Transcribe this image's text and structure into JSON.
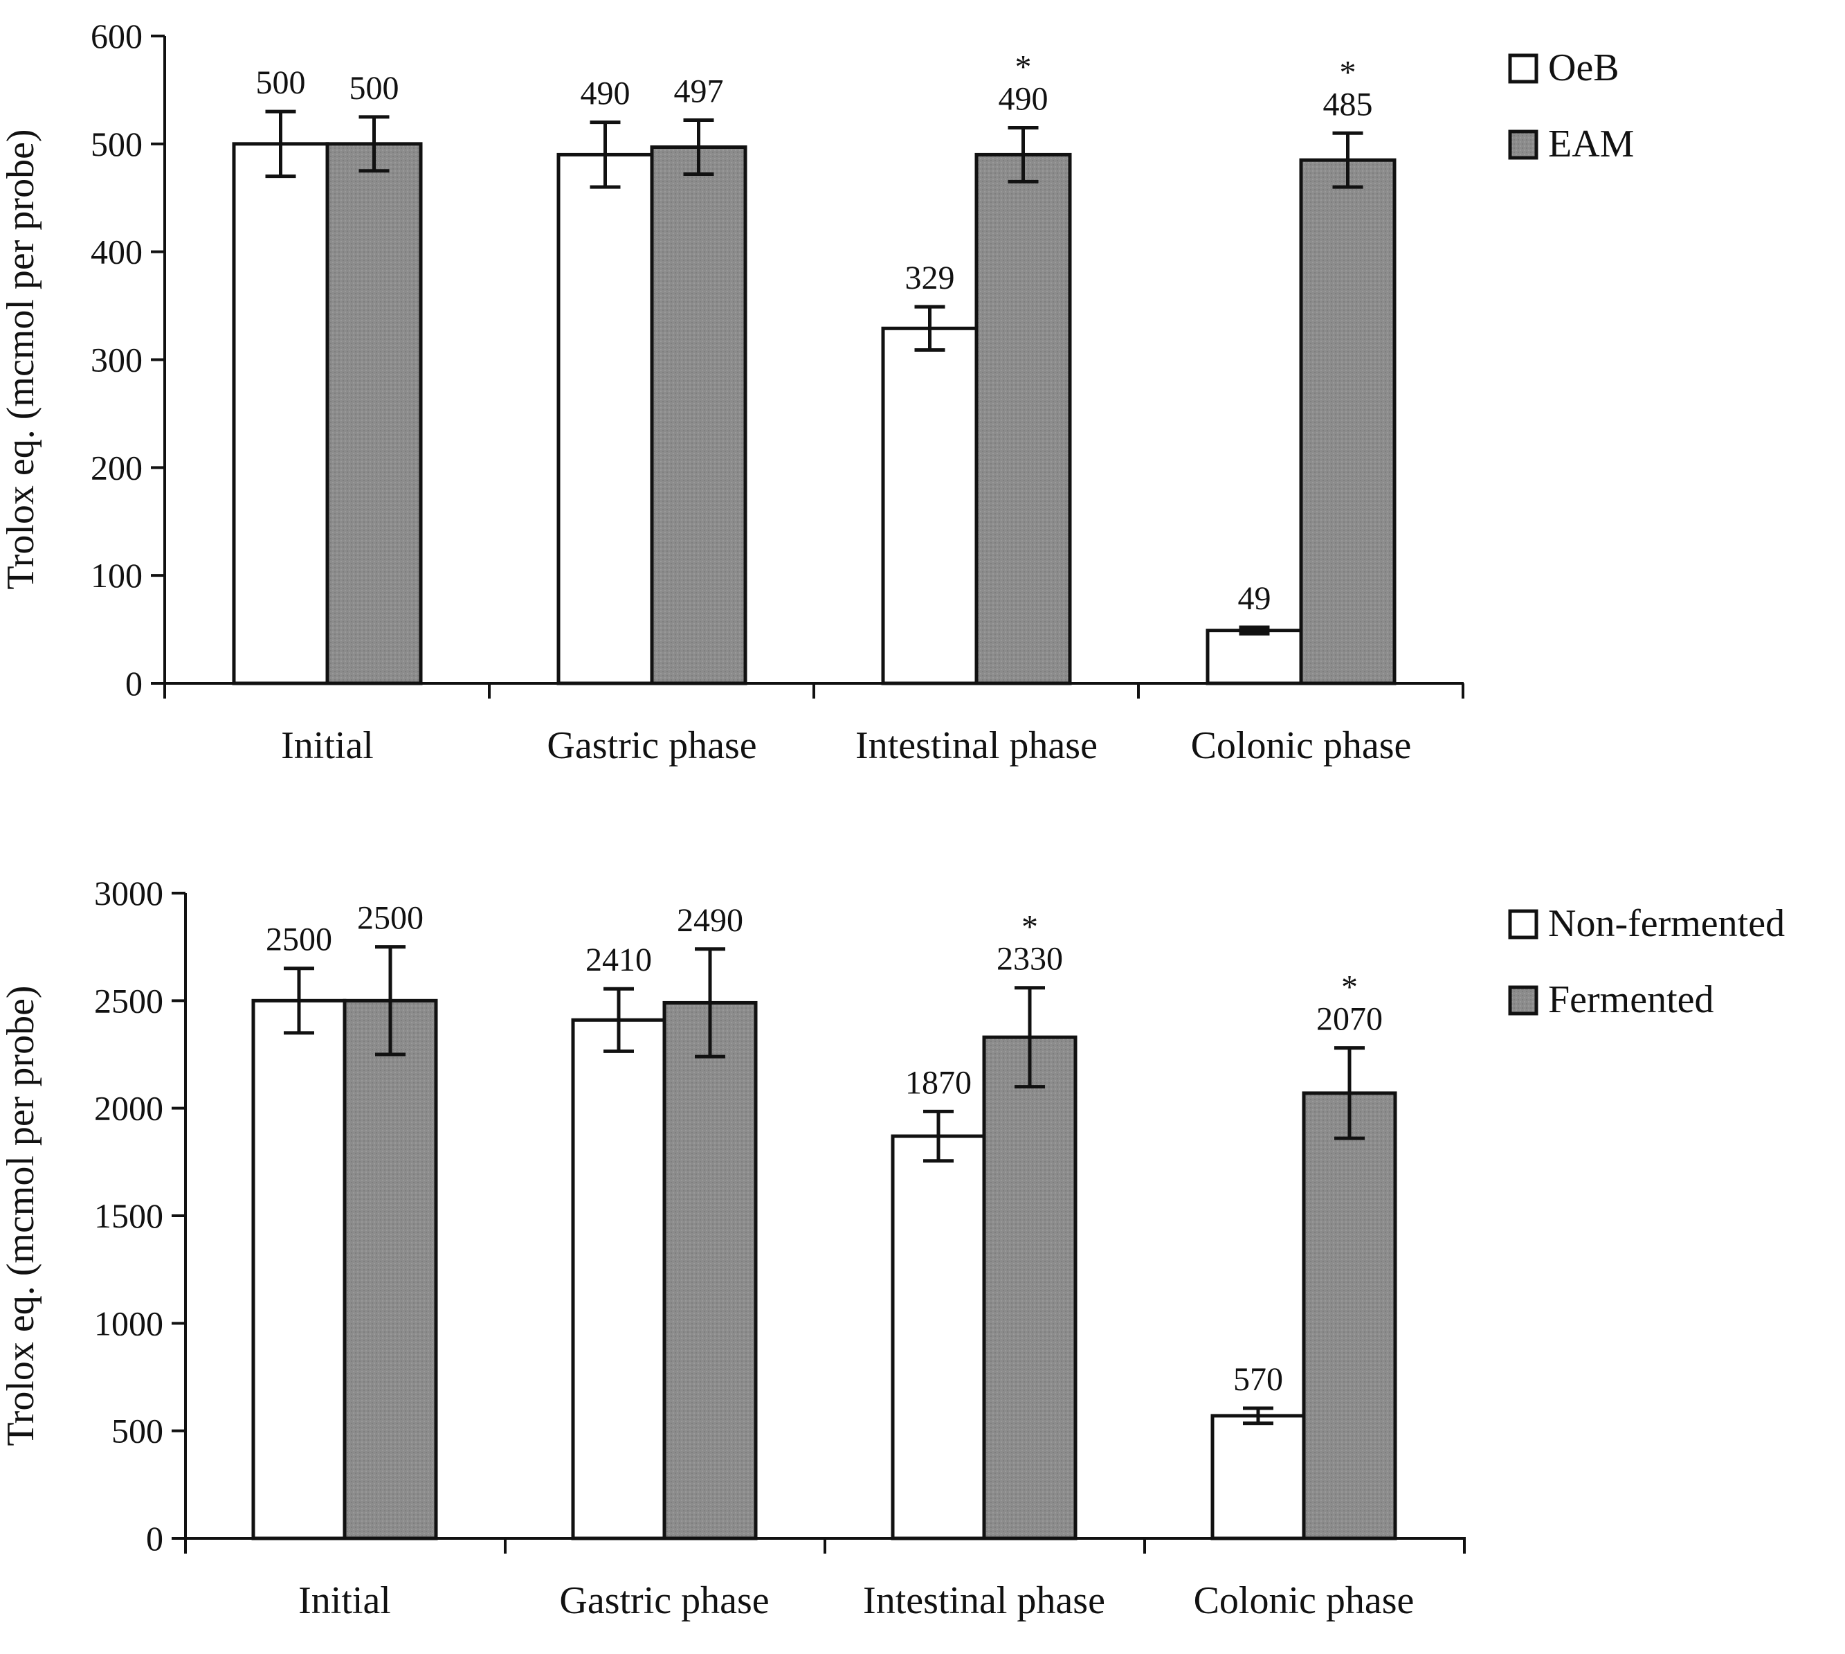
{
  "colors": {
    "white_bar": "#ffffff",
    "gray_bar": "#8c8c8c",
    "outline": "#111111"
  },
  "chart_data": [
    {
      "type": "bar",
      "title": "",
      "xlabel": "",
      "ylabel": "Trolox eq. (mcmol per probe)",
      "ylim": [
        0,
        600
      ],
      "yticks": [
        0,
        100,
        200,
        300,
        400,
        500,
        600
      ],
      "categories": [
        "Initial",
        "Gastric phase",
        "Intestinal phase",
        "Colonic phase"
      ],
      "legend_position": "top-right",
      "grid": false,
      "series": [
        {
          "name": "OeB",
          "color": "#ffffff",
          "values": [
            500,
            490,
            329,
            49
          ],
          "errors": [
            30,
            30,
            20,
            3
          ],
          "labels": [
            "500",
            "490",
            "329",
            "49"
          ],
          "stars": [
            "",
            "",
            "",
            ""
          ]
        },
        {
          "name": "EAM",
          "color": "#8c8c8c",
          "values": [
            500,
            497,
            490,
            485
          ],
          "errors": [
            25,
            25,
            25,
            25
          ],
          "labels": [
            "500",
            "497",
            "490",
            "485"
          ],
          "stars": [
            "",
            "",
            "*",
            "*"
          ]
        }
      ]
    },
    {
      "type": "bar",
      "title": "",
      "xlabel": "",
      "ylabel": "Trolox eq. (mcmol per probe)",
      "ylim": [
        0,
        3000
      ],
      "yticks": [
        0,
        500,
        1000,
        1500,
        2000,
        2500,
        3000
      ],
      "categories": [
        "Initial",
        "Gastric phase",
        "Intestinal phase",
        "Colonic phase"
      ],
      "legend_position": "top-right",
      "grid": false,
      "series": [
        {
          "name": "Non-fermented",
          "color": "#ffffff",
          "values": [
            2500,
            2410,
            1870,
            570
          ],
          "errors": [
            150,
            145,
            115,
            35
          ],
          "labels": [
            "2500",
            "2410",
            "1870",
            "570"
          ],
          "stars": [
            "",
            "",
            "",
            ""
          ]
        },
        {
          "name": "Fermented",
          "color": "#8c8c8c",
          "values": [
            2500,
            2490,
            2330,
            2070
          ],
          "errors": [
            250,
            250,
            230,
            210
          ],
          "labels": [
            "2500",
            "2490",
            "2330",
            "2070"
          ],
          "stars": [
            "",
            "",
            "*",
            "*"
          ]
        }
      ]
    }
  ]
}
